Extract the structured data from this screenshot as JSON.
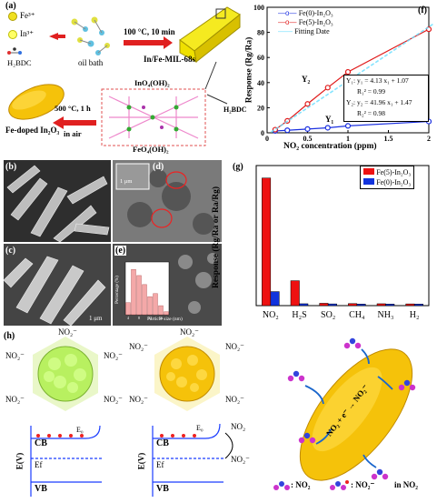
{
  "panel_a": {
    "label": "(a)",
    "fe": "Fe³⁺",
    "in": "In³⁺",
    "bdc": "H₂BDC",
    "oil_bath": "oil bath",
    "cond1": "100 °C, 10 min",
    "mof": "In/Fe-MIL-68s",
    "ino": "InO₄(OH)₂",
    "h2bdc": "H₂BDC",
    "feo": "FeO₄(OH)₂",
    "cond2a": "500 °C, 1 h",
    "cond2b": "in air",
    "product": "Fe-doped In₂O₃"
  },
  "panel_b": {
    "label": "(b)"
  },
  "panel_c": {
    "label": "(c)",
    "scale": "1 μm"
  },
  "panel_d": {
    "label": "(d)",
    "scale": "1 μm"
  },
  "panel_e": {
    "label": "(e)",
    "y_title": "Percentage (%)",
    "x_title": "Particle size (nm)"
  },
  "panel_h": {
    "label": "(h)",
    "no2_minus": "NO₂⁻",
    "no2": "NO₂",
    "cb": "CB",
    "vb": "VB",
    "ef": "Ef",
    "e0": "E₀",
    "ev": "E(V)",
    "legend1": ": NO₂",
    "legend2": ": NO₂⁻",
    "env": "in NO₂",
    "reaction": "NO₂ + e⁻ → NO₂⁻"
  },
  "chart_data": [
    {
      "id": "f",
      "type": "line",
      "label": "(f)",
      "xlabel": "NO₂ concentration (ppm)",
      "ylabel": "Response (Rg/Ra)",
      "xlim": [
        0,
        2
      ],
      "ylim": [
        0,
        100
      ],
      "x_ticks": [
        0,
        0.5,
        1,
        1.5,
        2
      ],
      "y_ticks": [
        0,
        20,
        40,
        60,
        80,
        100
      ],
      "series": [
        {
          "name": "Fe(0)-In₂O₃",
          "color": "#1a2fe0",
          "marker": "circle-open",
          "x": [
            0.1,
            0.25,
            0.5,
            0.75,
            1.0,
            2.0
          ],
          "y": [
            1.5,
            2.0,
            3.0,
            4.0,
            5.5,
            9.0
          ]
        },
        {
          "name": "Fe(5)-In₂O₃",
          "color": "#e01a1a",
          "marker": "circle-open",
          "x": [
            0.1,
            0.25,
            0.5,
            0.75,
            1.0,
            2.0
          ],
          "y": [
            2.5,
            9.5,
            23.0,
            36.0,
            48.5,
            82.5
          ]
        },
        {
          "name": "Fitting Date",
          "color": "#66ddff",
          "marker": "none",
          "dashed": true,
          "x": [
            0.05,
            2.05
          ],
          "y": [
            0.5,
            86.5
          ]
        }
      ],
      "annotations": {
        "y2": "Y₂",
        "y1": "Y₁",
        "eq1": "Y₁: y₁ = 4.13 x₁ + 1.07",
        "r1": "R₁² = 0.99",
        "eq2": "Y₂: y₂ = 41.96 x₁ + 1.47",
        "r2": "R₂² = 0.98"
      }
    },
    {
      "id": "g",
      "type": "bar",
      "label": "(g)",
      "ylabel": "Response (Rg/Ra or Ra/Rg)",
      "categories": [
        "NO₂",
        "H₂S",
        "SO₂",
        "CH₄",
        "NH₃",
        "H₂"
      ],
      "ylim": [
        0,
        90
      ],
      "series": [
        {
          "name": "Fe(5)-In₂O₃",
          "color": "#ee1111",
          "values": [
            82,
            16,
            1.5,
            1.3,
            1.2,
            1.1
          ]
        },
        {
          "name": "Fe(0)-In₂O₃",
          "color": "#1133dd",
          "values": [
            9,
            1.2,
            1.1,
            1.0,
            1.0,
            1.0
          ]
        }
      ]
    },
    {
      "id": "e",
      "type": "bar",
      "categories": [
        "4",
        "6",
        "8",
        "10",
        "12",
        "14",
        "16",
        "18"
      ],
      "values": [
        8,
        30,
        26,
        20,
        12,
        14,
        6,
        2
      ],
      "ylim": [
        0,
        35
      ],
      "color": "#f4a8a8"
    }
  ]
}
